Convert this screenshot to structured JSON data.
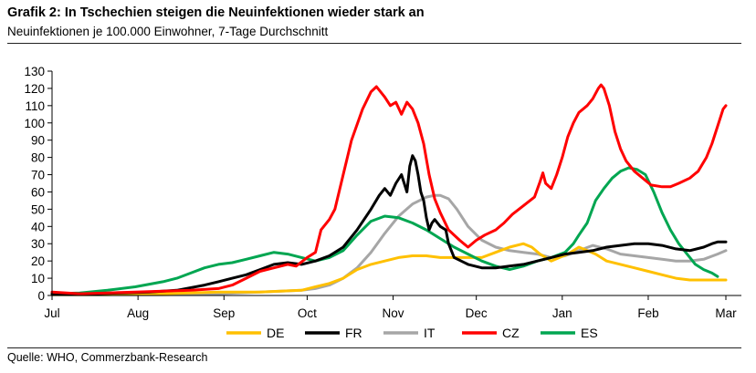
{
  "header": {
    "title": "Grafik 2: In Tschechien steigen die Neuinfektionen wieder stark an",
    "subtitle": "Neuinfektionen je 100.000 Einwohner, 7-Tage Durchschnitt"
  },
  "footer": {
    "source": "Quelle: WHO, Commerzbank-Research"
  },
  "chart_data": {
    "type": "line",
    "title": "Grafik 2: In Tschechien steigen die Neuinfektionen wieder stark an",
    "subtitle": "Neuinfektionen je 100.000 Einwohner, 7-Tage Durchschnitt",
    "xlabel": "",
    "ylabel": "",
    "x_unit": "days since Jul 1",
    "x_range": [
      0,
      243
    ],
    "ylim": [
      0,
      130
    ],
    "yticks": [
      0,
      10,
      20,
      30,
      40,
      50,
      60,
      70,
      80,
      90,
      100,
      110,
      120,
      130
    ],
    "xticks": [
      {
        "label": "Jul",
        "day": 0
      },
      {
        "label": "Aug",
        "day": 31
      },
      {
        "label": "Sep",
        "day": 62
      },
      {
        "label": "Oct",
        "day": 92
      },
      {
        "label": "Nov",
        "day": 123
      },
      {
        "label": "Dec",
        "day": 153
      },
      {
        "label": "Jan",
        "day": 184
      },
      {
        "label": "Feb",
        "day": 215
      },
      {
        "label": "Mar",
        "day": 243
      }
    ],
    "grid": false,
    "legend_position": "bottom",
    "series": [
      {
        "name": "DE",
        "color": "#FFC000",
        "points": [
          [
            0,
            0.5
          ],
          [
            20,
            0.5
          ],
          [
            40,
            1
          ],
          [
            60,
            2
          ],
          [
            75,
            2
          ],
          [
            90,
            3
          ],
          [
            95,
            5
          ],
          [
            100,
            7
          ],
          [
            105,
            10
          ],
          [
            110,
            15
          ],
          [
            115,
            18
          ],
          [
            120,
            20
          ],
          [
            125,
            22
          ],
          [
            130,
            23
          ],
          [
            135,
            23
          ],
          [
            140,
            22
          ],
          [
            145,
            22
          ],
          [
            150,
            22
          ],
          [
            155,
            22
          ],
          [
            160,
            25
          ],
          [
            165,
            28
          ],
          [
            170,
            30
          ],
          [
            173,
            28
          ],
          [
            176,
            24
          ],
          [
            180,
            20
          ],
          [
            183,
            22
          ],
          [
            186,
            24
          ],
          [
            190,
            28
          ],
          [
            193,
            26
          ],
          [
            196,
            24
          ],
          [
            200,
            20
          ],
          [
            205,
            18
          ],
          [
            210,
            16
          ],
          [
            215,
            14
          ],
          [
            220,
            12
          ],
          [
            225,
            10
          ],
          [
            230,
            9
          ],
          [
            235,
            9
          ],
          [
            240,
            9
          ],
          [
            243,
            9
          ]
        ]
      },
      {
        "name": "FR",
        "color": "#000000",
        "points": [
          [
            0,
            1
          ],
          [
            15,
            1
          ],
          [
            25,
            1.5
          ],
          [
            35,
            2
          ],
          [
            45,
            3
          ],
          [
            55,
            6
          ],
          [
            60,
            8
          ],
          [
            65,
            10
          ],
          [
            70,
            12
          ],
          [
            75,
            15
          ],
          [
            80,
            18
          ],
          [
            85,
            19
          ],
          [
            90,
            18
          ],
          [
            95,
            20
          ],
          [
            100,
            23
          ],
          [
            105,
            28
          ],
          [
            110,
            38
          ],
          [
            115,
            50
          ],
          [
            118,
            58
          ],
          [
            120,
            62
          ],
          [
            122,
            58
          ],
          [
            124,
            65
          ],
          [
            126,
            70
          ],
          [
            128,
            60
          ],
          [
            129,
            75
          ],
          [
            130,
            81
          ],
          [
            131,
            78
          ],
          [
            132,
            70
          ],
          [
            133,
            60
          ],
          [
            134,
            55
          ],
          [
            135,
            45
          ],
          [
            136,
            38
          ],
          [
            137,
            42
          ],
          [
            138,
            44
          ],
          [
            140,
            40
          ],
          [
            142,
            38
          ],
          [
            143,
            30
          ],
          [
            145,
            22
          ],
          [
            150,
            18
          ],
          [
            155,
            16
          ],
          [
            160,
            16
          ],
          [
            165,
            17
          ],
          [
            170,
            18
          ],
          [
            175,
            20
          ],
          [
            180,
            22
          ],
          [
            185,
            24
          ],
          [
            190,
            25
          ],
          [
            195,
            26
          ],
          [
            200,
            28
          ],
          [
            205,
            29
          ],
          [
            210,
            30
          ],
          [
            215,
            30
          ],
          [
            220,
            29
          ],
          [
            225,
            27
          ],
          [
            230,
            26
          ],
          [
            235,
            28
          ],
          [
            238,
            30
          ],
          [
            240,
            31
          ],
          [
            243,
            31
          ]
        ]
      },
      {
        "name": "IT",
        "color": "#A6A6A6",
        "points": [
          [
            0,
            0.5
          ],
          [
            40,
            0.5
          ],
          [
            60,
            1
          ],
          [
            75,
            2
          ],
          [
            90,
            3
          ],
          [
            95,
            4
          ],
          [
            100,
            6
          ],
          [
            105,
            10
          ],
          [
            110,
            16
          ],
          [
            115,
            25
          ],
          [
            120,
            36
          ],
          [
            125,
            46
          ],
          [
            130,
            53
          ],
          [
            135,
            57
          ],
          [
            138,
            58
          ],
          [
            140,
            58
          ],
          [
            143,
            56
          ],
          [
            146,
            50
          ],
          [
            150,
            40
          ],
          [
            155,
            32
          ],
          [
            160,
            28
          ],
          [
            165,
            26
          ],
          [
            170,
            25
          ],
          [
            175,
            24
          ],
          [
            180,
            22
          ],
          [
            185,
            23
          ],
          [
            190,
            26
          ],
          [
            195,
            29
          ],
          [
            200,
            27
          ],
          [
            205,
            24
          ],
          [
            210,
            23
          ],
          [
            215,
            22
          ],
          [
            220,
            21
          ],
          [
            225,
            20
          ],
          [
            230,
            20
          ],
          [
            235,
            21
          ],
          [
            240,
            24
          ],
          [
            243,
            26
          ]
        ]
      },
      {
        "name": "CZ",
        "color": "#FF0000",
        "points": [
          [
            0,
            2
          ],
          [
            10,
            1
          ],
          [
            20,
            1.5
          ],
          [
            30,
            2
          ],
          [
            40,
            2.5
          ],
          [
            50,
            3
          ],
          [
            60,
            4
          ],
          [
            65,
            6
          ],
          [
            70,
            10
          ],
          [
            75,
            14
          ],
          [
            80,
            16
          ],
          [
            85,
            18
          ],
          [
            88,
            17
          ],
          [
            92,
            22
          ],
          [
            95,
            25
          ],
          [
            97,
            38
          ],
          [
            100,
            44
          ],
          [
            102,
            50
          ],
          [
            105,
            70
          ],
          [
            108,
            90
          ],
          [
            112,
            108
          ],
          [
            115,
            118
          ],
          [
            117,
            121
          ],
          [
            120,
            115
          ],
          [
            122,
            110
          ],
          [
            124,
            112
          ],
          [
            126,
            105
          ],
          [
            128,
            112
          ],
          [
            130,
            108
          ],
          [
            132,
            100
          ],
          [
            134,
            88
          ],
          [
            136,
            70
          ],
          [
            138,
            56
          ],
          [
            140,
            48
          ],
          [
            143,
            38
          ],
          [
            147,
            32
          ],
          [
            150,
            28
          ],
          [
            153,
            32
          ],
          [
            156,
            35
          ],
          [
            160,
            38
          ],
          [
            163,
            42
          ],
          [
            166,
            47
          ],
          [
            170,
            52
          ],
          [
            174,
            57
          ],
          [
            176,
            66
          ],
          [
            177,
            71
          ],
          [
            178,
            65
          ],
          [
            180,
            62
          ],
          [
            182,
            70
          ],
          [
            184,
            80
          ],
          [
            186,
            92
          ],
          [
            188,
            100
          ],
          [
            190,
            106
          ],
          [
            193,
            110
          ],
          [
            195,
            114
          ],
          [
            197,
            120
          ],
          [
            198,
            122
          ],
          [
            199,
            120
          ],
          [
            201,
            110
          ],
          [
            203,
            95
          ],
          [
            205,
            85
          ],
          [
            207,
            78
          ],
          [
            210,
            72
          ],
          [
            213,
            68
          ],
          [
            216,
            64
          ],
          [
            220,
            63
          ],
          [
            223,
            63
          ],
          [
            226,
            65
          ],
          [
            230,
            68
          ],
          [
            233,
            72
          ],
          [
            236,
            80
          ],
          [
            238,
            88
          ],
          [
            240,
            98
          ],
          [
            242,
            108
          ],
          [
            243,
            110
          ]
        ]
      },
      {
        "name": "ES",
        "color": "#00A651",
        "points": [
          [
            0,
            1
          ],
          [
            10,
            1.5
          ],
          [
            20,
            3
          ],
          [
            30,
            5
          ],
          [
            40,
            8
          ],
          [
            45,
            10
          ],
          [
            50,
            13
          ],
          [
            55,
            16
          ],
          [
            60,
            18
          ],
          [
            65,
            19
          ],
          [
            70,
            21
          ],
          [
            75,
            23
          ],
          [
            80,
            25
          ],
          [
            85,
            24
          ],
          [
            90,
            22
          ],
          [
            95,
            20
          ],
          [
            100,
            22
          ],
          [
            105,
            26
          ],
          [
            110,
            35
          ],
          [
            115,
            43
          ],
          [
            120,
            46
          ],
          [
            125,
            45
          ],
          [
            130,
            42
          ],
          [
            135,
            38
          ],
          [
            140,
            33
          ],
          [
            145,
            28
          ],
          [
            150,
            24
          ],
          [
            155,
            20
          ],
          [
            160,
            17
          ],
          [
            165,
            15
          ],
          [
            170,
            17
          ],
          [
            175,
            20
          ],
          [
            180,
            22
          ],
          [
            185,
            25
          ],
          [
            188,
            30
          ],
          [
            190,
            35
          ],
          [
            193,
            42
          ],
          [
            196,
            55
          ],
          [
            199,
            62
          ],
          [
            202,
            68
          ],
          [
            205,
            72
          ],
          [
            208,
            74
          ],
          [
            211,
            73
          ],
          [
            214,
            70
          ],
          [
            217,
            60
          ],
          [
            220,
            48
          ],
          [
            223,
            38
          ],
          [
            226,
            30
          ],
          [
            229,
            24
          ],
          [
            232,
            18
          ],
          [
            235,
            15
          ],
          [
            238,
            13
          ],
          [
            240,
            11
          ]
        ]
      }
    ]
  }
}
